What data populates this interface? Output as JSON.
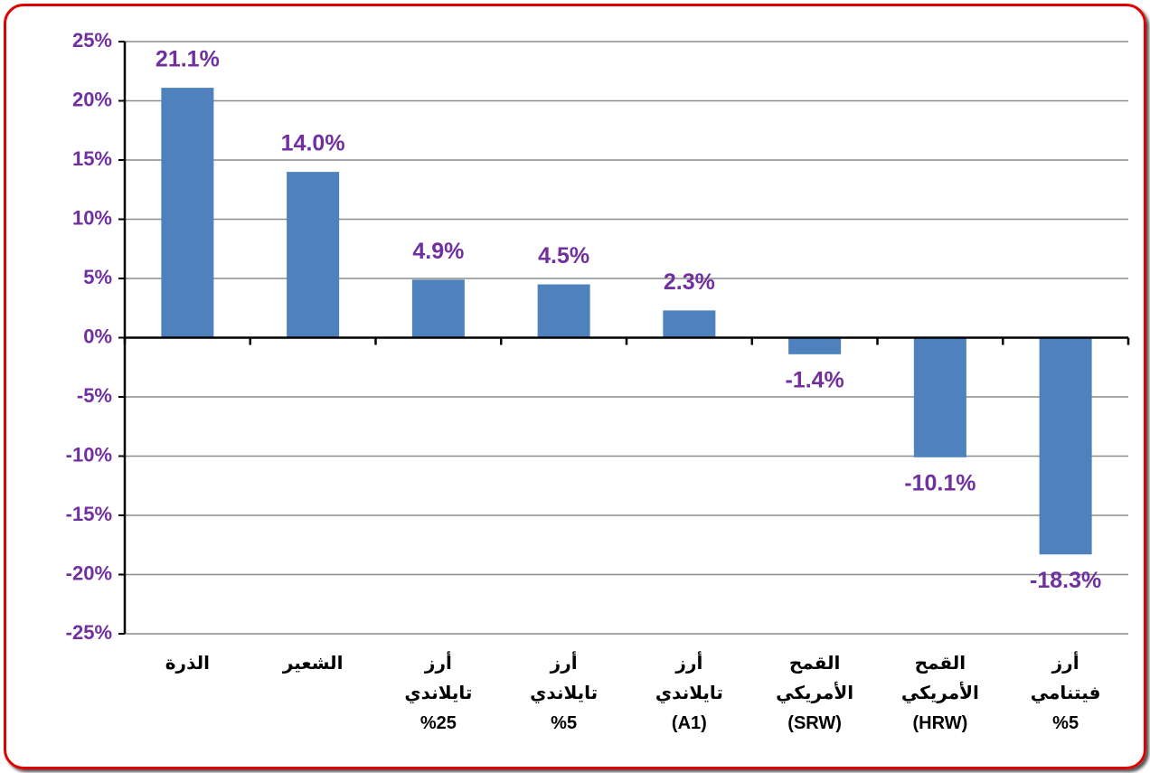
{
  "chart_data": {
    "type": "bar",
    "categories": [
      "الذرة",
      "الشعير",
      "أرز تايلاندي 25%",
      "أرز تايلاندي 5%",
      "أرز تايلاندي (A1)",
      "القمح الأمريكي (SRW)",
      "القمح الأمريكي (HRW)",
      "أرز فيتنامي 5%"
    ],
    "values": [
      21.1,
      14.0,
      4.9,
      4.5,
      2.3,
      -1.4,
      -10.1,
      -18.3
    ],
    "value_labels": [
      "21.1%",
      "14.0%",
      "4.9%",
      "4.5%",
      "2.3%",
      "-1.4%",
      "-10.1%",
      "-18.3%"
    ],
    "color": "#4f81bd",
    "ylim": [
      -25,
      25
    ],
    "yticks": [
      {
        "value": -25,
        "label": "-25%"
      },
      {
        "value": -20,
        "label": "-20%"
      },
      {
        "value": -15,
        "label": "-15%"
      },
      {
        "value": -10,
        "label": "-10%"
      },
      {
        "value": -5,
        "label": "-5%"
      },
      {
        "value": 0,
        "label": "0%"
      },
      {
        "value": 5,
        "label": "5%"
      },
      {
        "value": 10,
        "label": "10%"
      },
      {
        "value": 15,
        "label": "15%"
      },
      {
        "value": 20,
        "label": "20%"
      },
      {
        "value": 25,
        "label": "25%"
      }
    ],
    "grid": true
  }
}
